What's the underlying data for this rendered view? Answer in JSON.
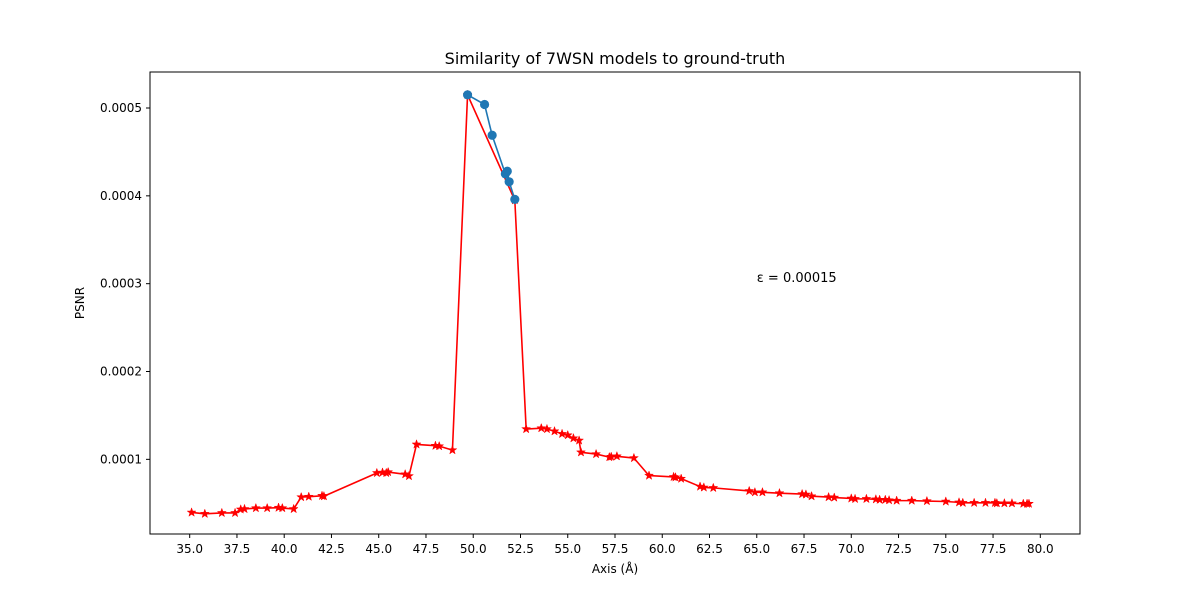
{
  "chart_data": {
    "type": "line",
    "title": "Similarity of 7WSN models to ground-truth",
    "xlabel": "Axis (Å)",
    "ylabel": "PSNR",
    "xlim": [
      32.9,
      82.1
    ],
    "ylim": [
      1.5e-05,
      0.000541
    ],
    "xticks": [
      35.0,
      37.5,
      40.0,
      42.5,
      45.0,
      47.5,
      50.0,
      52.5,
      55.0,
      57.5,
      60.0,
      62.5,
      65.0,
      67.5,
      70.0,
      72.5,
      75.0,
      77.5,
      80.0
    ],
    "xtick_labels": [
      "35.0",
      "37.5",
      "40.0",
      "42.5",
      "45.0",
      "47.5",
      "50.0",
      "52.5",
      "55.0",
      "57.5",
      "60.0",
      "62.5",
      "65.0",
      "67.5",
      "70.0",
      "72.5",
      "75.0",
      "77.5",
      "80.0"
    ],
    "yticks": [
      0.0001,
      0.0002,
      0.0003,
      0.0004,
      0.0005
    ],
    "ytick_labels": [
      "0.0001",
      "0.0002",
      "0.0003",
      "0.0004",
      "0.0005"
    ],
    "grid": false,
    "annotation": {
      "text": "ε = 0.00015",
      "x": 65.0,
      "y": 0.000302
    },
    "series": [
      {
        "marker": "star",
        "color": "#ff0000",
        "x": [
          35.1,
          35.8,
          36.7,
          37.4,
          37.7,
          37.9,
          38.5,
          39.1,
          39.7,
          39.9,
          40.5,
          40.9,
          41.3,
          42.0,
          42.1,
          44.9,
          45.2,
          45.4,
          45.5,
          46.4,
          46.6,
          47.0,
          48.0,
          48.2,
          48.9,
          49.7,
          52.2,
          52.8,
          53.6,
          53.9,
          54.3,
          54.7,
          55.0,
          55.3,
          55.6,
          55.7,
          56.5,
          57.2,
          57.3,
          57.6,
          58.5,
          59.3,
          60.6,
          60.7,
          61.0,
          62.0,
          62.2,
          62.7,
          64.6,
          64.9,
          65.3,
          66.2,
          67.4,
          67.6,
          67.9,
          68.8,
          69.1,
          70.0,
          70.2,
          70.8,
          71.3,
          71.5,
          71.8,
          72.0,
          72.4,
          73.2,
          74.0,
          75.0,
          75.7,
          75.9,
          76.5,
          77.1,
          77.6,
          77.7,
          78.1,
          78.5,
          79.1,
          79.3,
          79.4
        ],
        "y": [
          3.95e-05,
          3.8e-05,
          3.9e-05,
          3.9e-05,
          4.3e-05,
          4.35e-05,
          4.45e-05,
          4.45e-05,
          4.5e-05,
          4.45e-05,
          4.35e-05,
          5.7e-05,
          5.75e-05,
          5.85e-05,
          5.8e-05,
          8.45e-05,
          8.5e-05,
          8.45e-05,
          8.55e-05,
          8.3e-05,
          8.1e-05,
          0.000117,
          0.0001155,
          0.000115,
          0.0001105,
          0.000515,
          0.000395,
          0.0001345,
          0.0001355,
          0.0001345,
          0.000132,
          0.000129,
          0.0001275,
          0.000124,
          0.0001215,
          0.000108,
          0.000106,
          0.0001025,
          0.000103,
          0.0001035,
          0.0001015,
          8.15e-05,
          8e-05,
          7.95e-05,
          7.8e-05,
          6.9e-05,
          6.8e-05,
          6.75e-05,
          6.4e-05,
          6.25e-05,
          6.25e-05,
          6.15e-05,
          6.05e-05,
          6e-05,
          5.8e-05,
          5.7e-05,
          5.65e-05,
          5.55e-05,
          5.5e-05,
          5.5e-05,
          5.45e-05,
          5.4e-05,
          5.4e-05,
          5.35e-05,
          5.3e-05,
          5.3e-05,
          5.25e-05,
          5.2e-05,
          5.1e-05,
          5.05e-05,
          5.05e-05,
          5.05e-05,
          5.05e-05,
          5e-05,
          5e-05,
          5e-05,
          4.95e-05,
          4.95e-05,
          4.95e-05
        ]
      },
      {
        "marker": "circle",
        "color": "#1f77b4",
        "x": [
          49.7,
          50.6,
          51.0,
          51.7,
          51.8,
          51.9,
          52.2
        ],
        "y": [
          0.000515,
          0.000504,
          0.000469,
          0.000425,
          0.000428,
          0.000416,
          0.000396
        ]
      }
    ]
  }
}
